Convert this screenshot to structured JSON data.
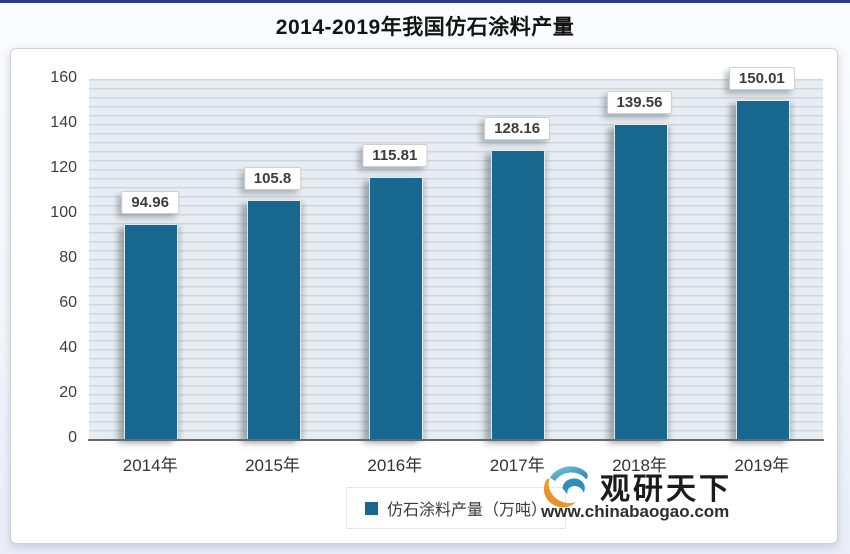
{
  "page": {
    "title": "2014-2019年我国仿石涂料产量",
    "top_accent_color": "#2B3C8C"
  },
  "chart_data": {
    "type": "bar",
    "title": "2014-2019年我国仿石涂料产量",
    "categories": [
      "2014年",
      "2015年",
      "2016年",
      "2017年",
      "2018年",
      "2019年"
    ],
    "values": [
      94.96,
      105.8,
      115.81,
      128.16,
      139.56,
      150.01
    ],
    "data_labels": [
      "94.96",
      "105.8",
      "115.81",
      "128.16",
      "139.56",
      "150.01"
    ],
    "series_name": "仿石涂料产量（万吨）",
    "xlabel": "",
    "ylabel": "",
    "ylim": [
      0,
      160
    ],
    "yticks": [
      0,
      20,
      40,
      60,
      80,
      100,
      120,
      140,
      160
    ],
    "grid": "horizontal-minor",
    "legend_position": "bottom-center",
    "bar_color": "#17678E",
    "plot_background": "#E7EDF2",
    "gridline_color": "#CFD7DE"
  },
  "legend": {
    "marker_color": "#17678E",
    "label": "仿石涂料产量（万吨）"
  },
  "watermark": {
    "brand": "观研天下",
    "url": "www.chinabaogao.com",
    "logo_blue": "#2E8FBE",
    "logo_orange": "#EE9428"
  }
}
